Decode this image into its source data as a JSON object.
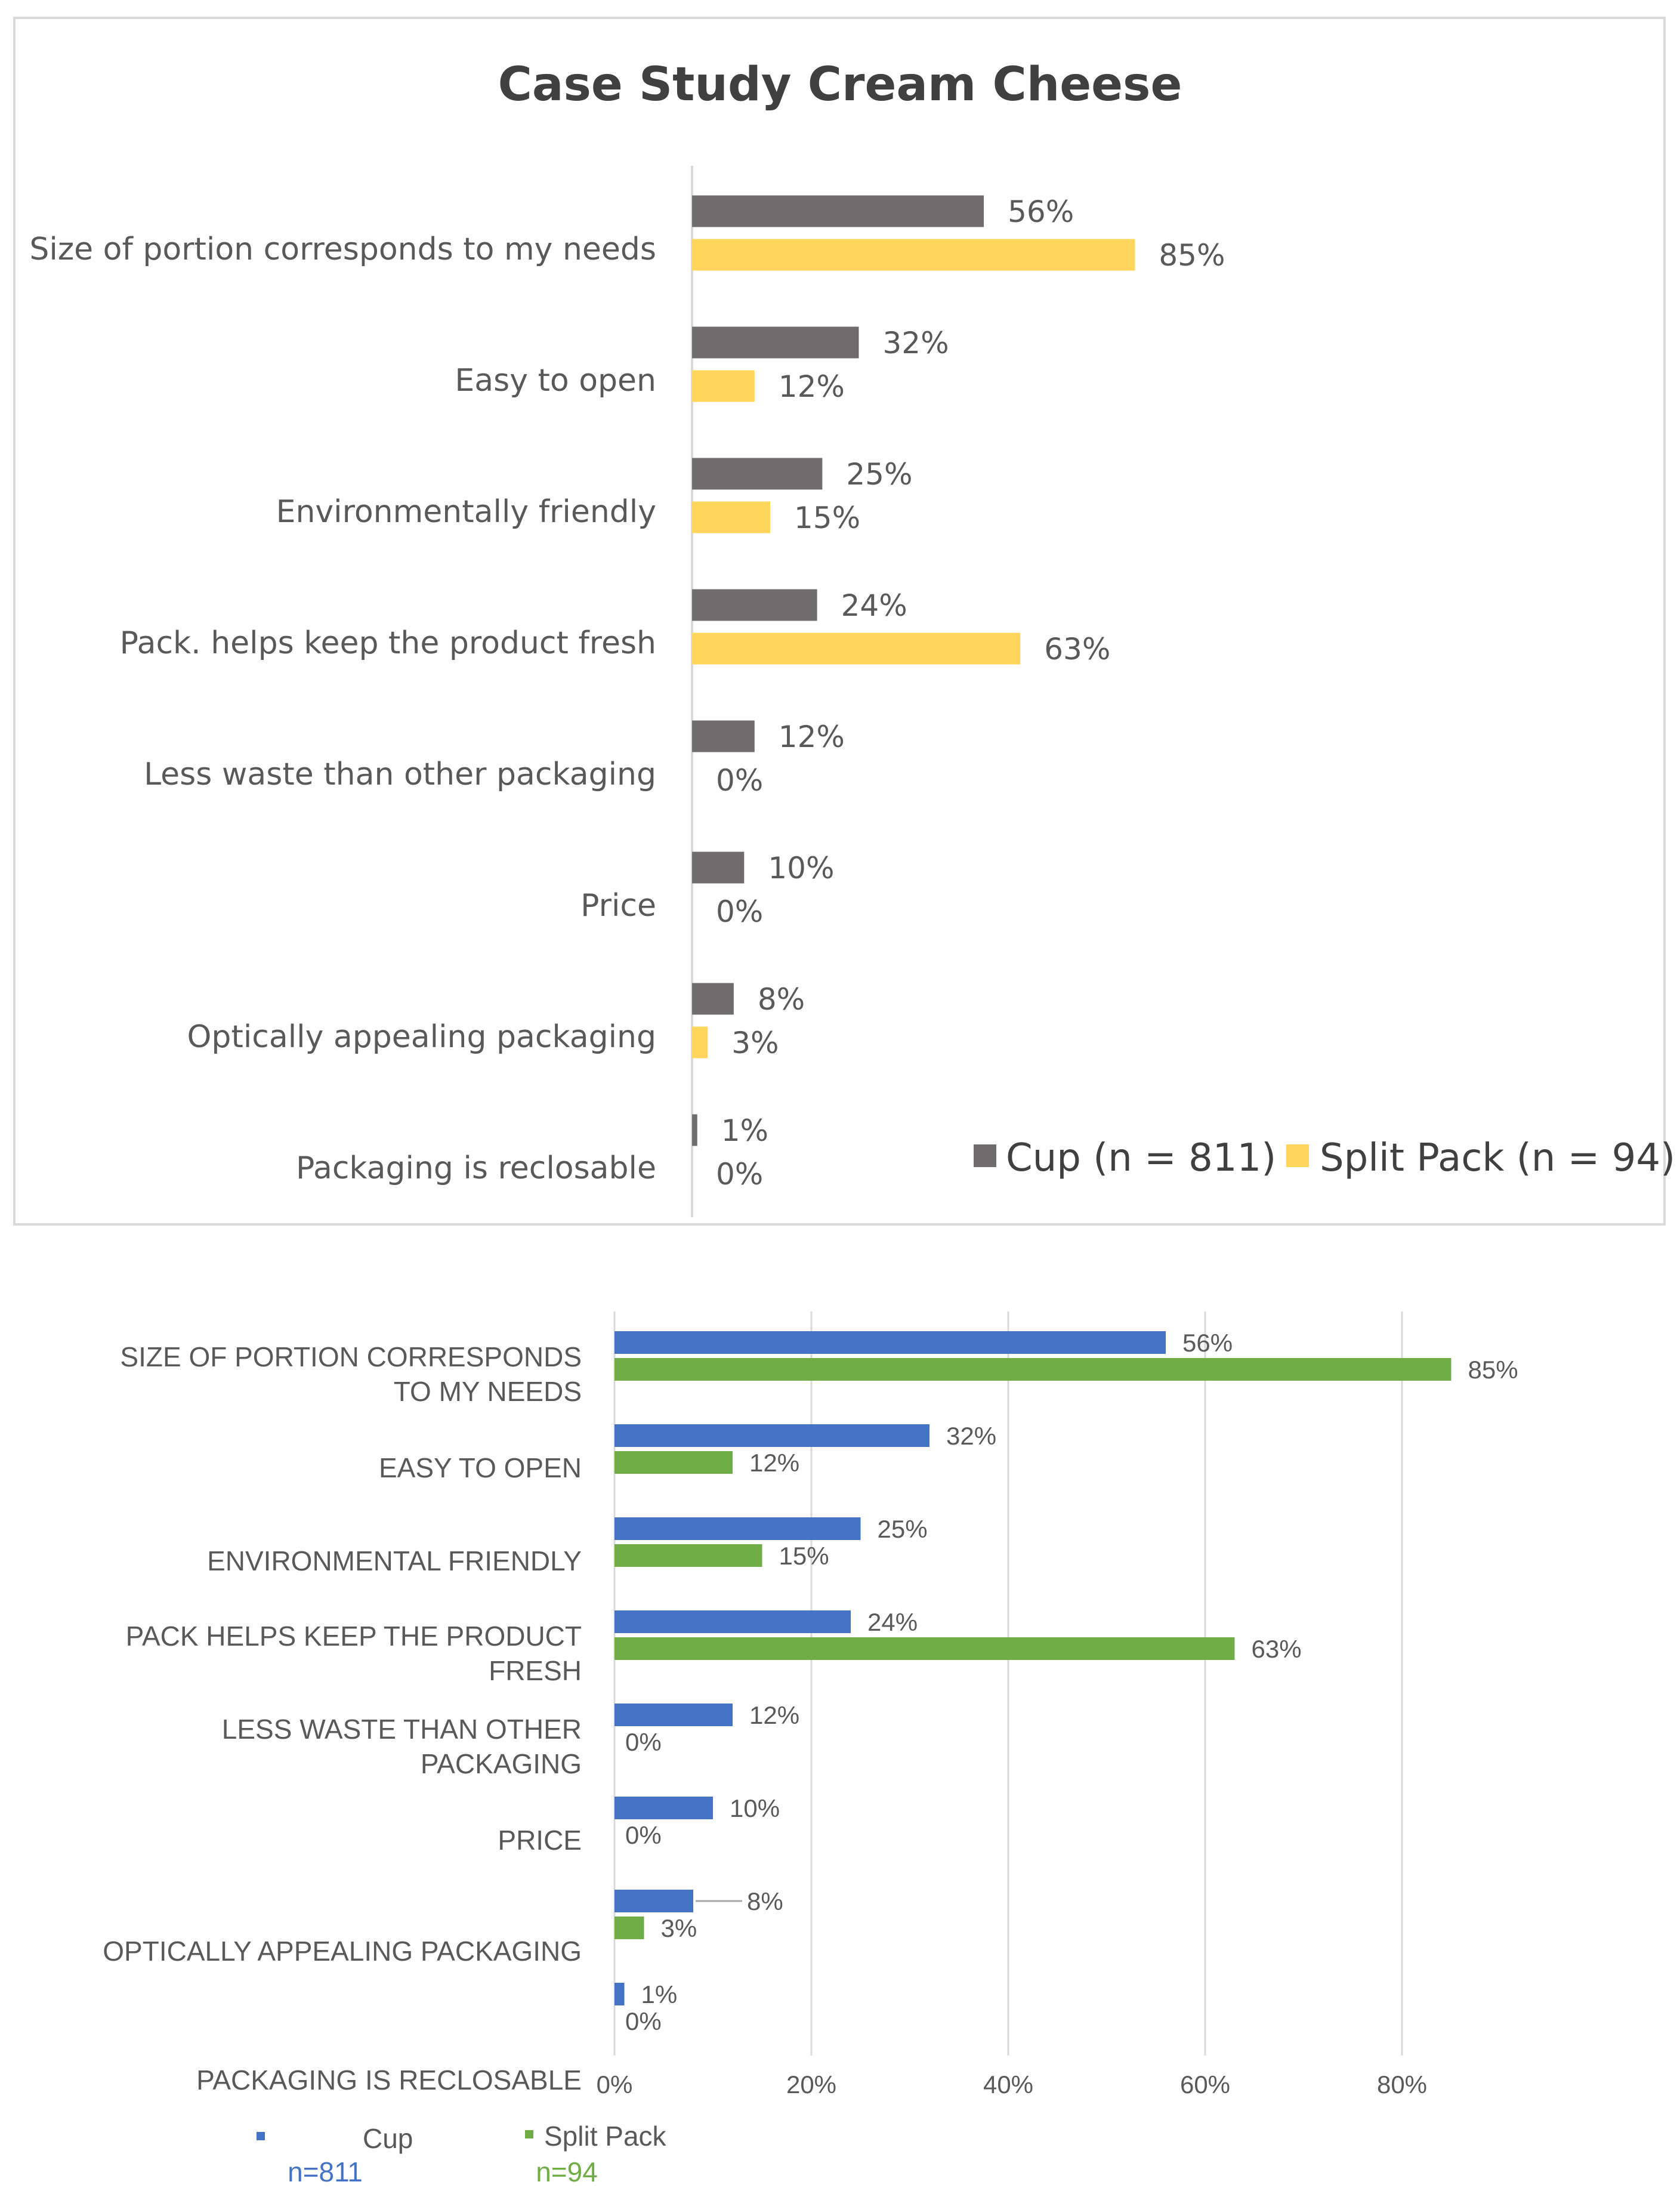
{
  "chart_data": [
    {
      "type": "bar",
      "orientation": "horizontal",
      "title": "Case Study Cream Cheese",
      "categories": [
        "Size of portion corresponds to my needs",
        "Easy to open",
        "Environmentally friendly",
        "Pack. helps keep the product fresh",
        "Less waste than other packaging",
        "Price",
        "Optically appealing packaging",
        "Packaging is reclosable"
      ],
      "series": [
        {
          "name": "Cup (n = 811)",
          "color": "#6e6c6c",
          "values": [
            56,
            32,
            25,
            24,
            12,
            10,
            8,
            1
          ],
          "labels": [
            "56%",
            "32%",
            "25%",
            "24%",
            "12%",
            "10%",
            "8%",
            "1%"
          ]
        },
        {
          "name": "Split Pack (n = 94)",
          "color": "#ffd55c",
          "values": [
            85,
            12,
            15,
            63,
            0,
            0,
            3,
            0
          ],
          "labels": [
            "85%",
            "12%",
            "15%",
            "63%",
            "0%",
            "0%",
            "3%",
            "0%"
          ]
        }
      ],
      "xlim": [
        0,
        100
      ],
      "grid": false,
      "legend": "bottom-right"
    },
    {
      "type": "bar",
      "orientation": "horizontal",
      "title": "",
      "categories": [
        [
          "SIZE OF PORTION CORRESPONDS",
          "TO MY NEEDS"
        ],
        [
          "EASY TO OPEN"
        ],
        [
          "ENVIRONMENTAL FRIENDLY"
        ],
        [
          "PACK HELPS KEEP THE PRODUCT",
          "FRESH"
        ],
        [
          "LESS WASTE THAN OTHER",
          "PACKAGING"
        ],
        [
          "PRICE"
        ],
        [
          "OPTICALLY APPEALING PACKAGING"
        ],
        [
          "PACKAGING IS RECLOSABLE"
        ]
      ],
      "series": [
        {
          "name": "Cup",
          "sublabel": "n=811",
          "color": "#4472c4",
          "values": [
            56,
            32,
            25,
            24,
            12,
            10,
            8,
            1
          ],
          "labels": [
            "56%",
            "32%",
            "25%",
            "24%",
            "12%",
            "10%",
            "8%",
            "1%"
          ]
        },
        {
          "name": "Split Pack",
          "sublabel": "n=94",
          "color": "#70ad47",
          "values": [
            85,
            12,
            15,
            63,
            0,
            0,
            3,
            0
          ],
          "labels": [
            "85%",
            "12%",
            "15%",
            "63%",
            "0%",
            "0%",
            "3%",
            "0%"
          ]
        }
      ],
      "x_ticks": [
        "0%",
        "20%",
        "40%",
        "60%",
        "80%"
      ],
      "xlim": [
        0,
        90
      ],
      "grid": true,
      "legend": "bottom-left"
    }
  ]
}
